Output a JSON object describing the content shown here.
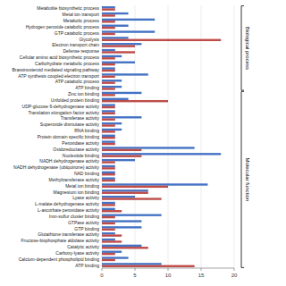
{
  "chart_data": {
    "type": "bar",
    "orientation": "horizontal",
    "grid": true,
    "categories": [
      "Metabolite biosynthetic process",
      "Metal ion transport",
      "Metabolic process",
      "Hydrogen peroxide catabolic process",
      "GTP catabolic process",
      "Glycolysis",
      "Electron transport chain",
      "Defense response",
      "Cellular amino acid biosynthetic process",
      "Carbohydrate metabolic process",
      "Brassinosteroid mediated signaling pathway",
      "ATP synthesis coupled electron transport",
      "ATP catabolic process",
      "ATP binding",
      "Zinc ion binding",
      "Unfolded protein binding",
      "UDP-glucose 6-dehydrogenase activity",
      "Translation elongation factor activity",
      "Transferase activity",
      "Superoxide dismutase activity",
      "RNA binding",
      "Protein domain specific binding",
      "Peroxidase activity",
      "Oxidoreductase activity",
      "Nucleotide binding",
      "NADH dehydrogenase activity",
      "NADH dehydrogenase (ubiquinone) activity",
      "NAD binding",
      "Methyltransferase activity",
      "Metal ion binding",
      "Magnesium ion binding",
      "Lyase activity",
      "L-malate dehydrogenase activity",
      "L-ascorbate peroxidase activity",
      "Iron-sulfur cluster binding",
      "GTPase activity",
      "GTP binding",
      "Glutathione transferase activity",
      "Fructose-bisphosphate aldolase activity",
      "Catalytic activity",
      "Carboxy-lyase activity",
      "Calcium-dependent phospholipid binding",
      "ATP binding"
    ],
    "series": [
      {
        "color": "#4472C4",
        "values": [
          2,
          4,
          8,
          4,
          8,
          4,
          6,
          2,
          3,
          5,
          2,
          7,
          3,
          3,
          6,
          4,
          2,
          2,
          6,
          3,
          3,
          2,
          2,
          14,
          18,
          5,
          2,
          2,
          2,
          16,
          7,
          5,
          2,
          2,
          9,
          6,
          6,
          2,
          2,
          6,
          3,
          4,
          9
        ]
      },
      {
        "color": "#BE4B48",
        "values": [
          2,
          2,
          2,
          2,
          2,
          18,
          5,
          5,
          2,
          2,
          2,
          2,
          2,
          2,
          2,
          10,
          2,
          2,
          2,
          2,
          2,
          2,
          2,
          6,
          6,
          2,
          2,
          2,
          2,
          10,
          7,
          9,
          2,
          3,
          2,
          2,
          2,
          3,
          3,
          7,
          2,
          2,
          14
        ]
      }
    ],
    "xlim": [
      0,
      20
    ],
    "xticks": [
      0,
      5,
      10,
      15,
      20
    ],
    "annotations": [
      {
        "text": "Biological process",
        "count": 14
      },
      {
        "text": "Molecular function",
        "count": 29
      }
    ]
  }
}
